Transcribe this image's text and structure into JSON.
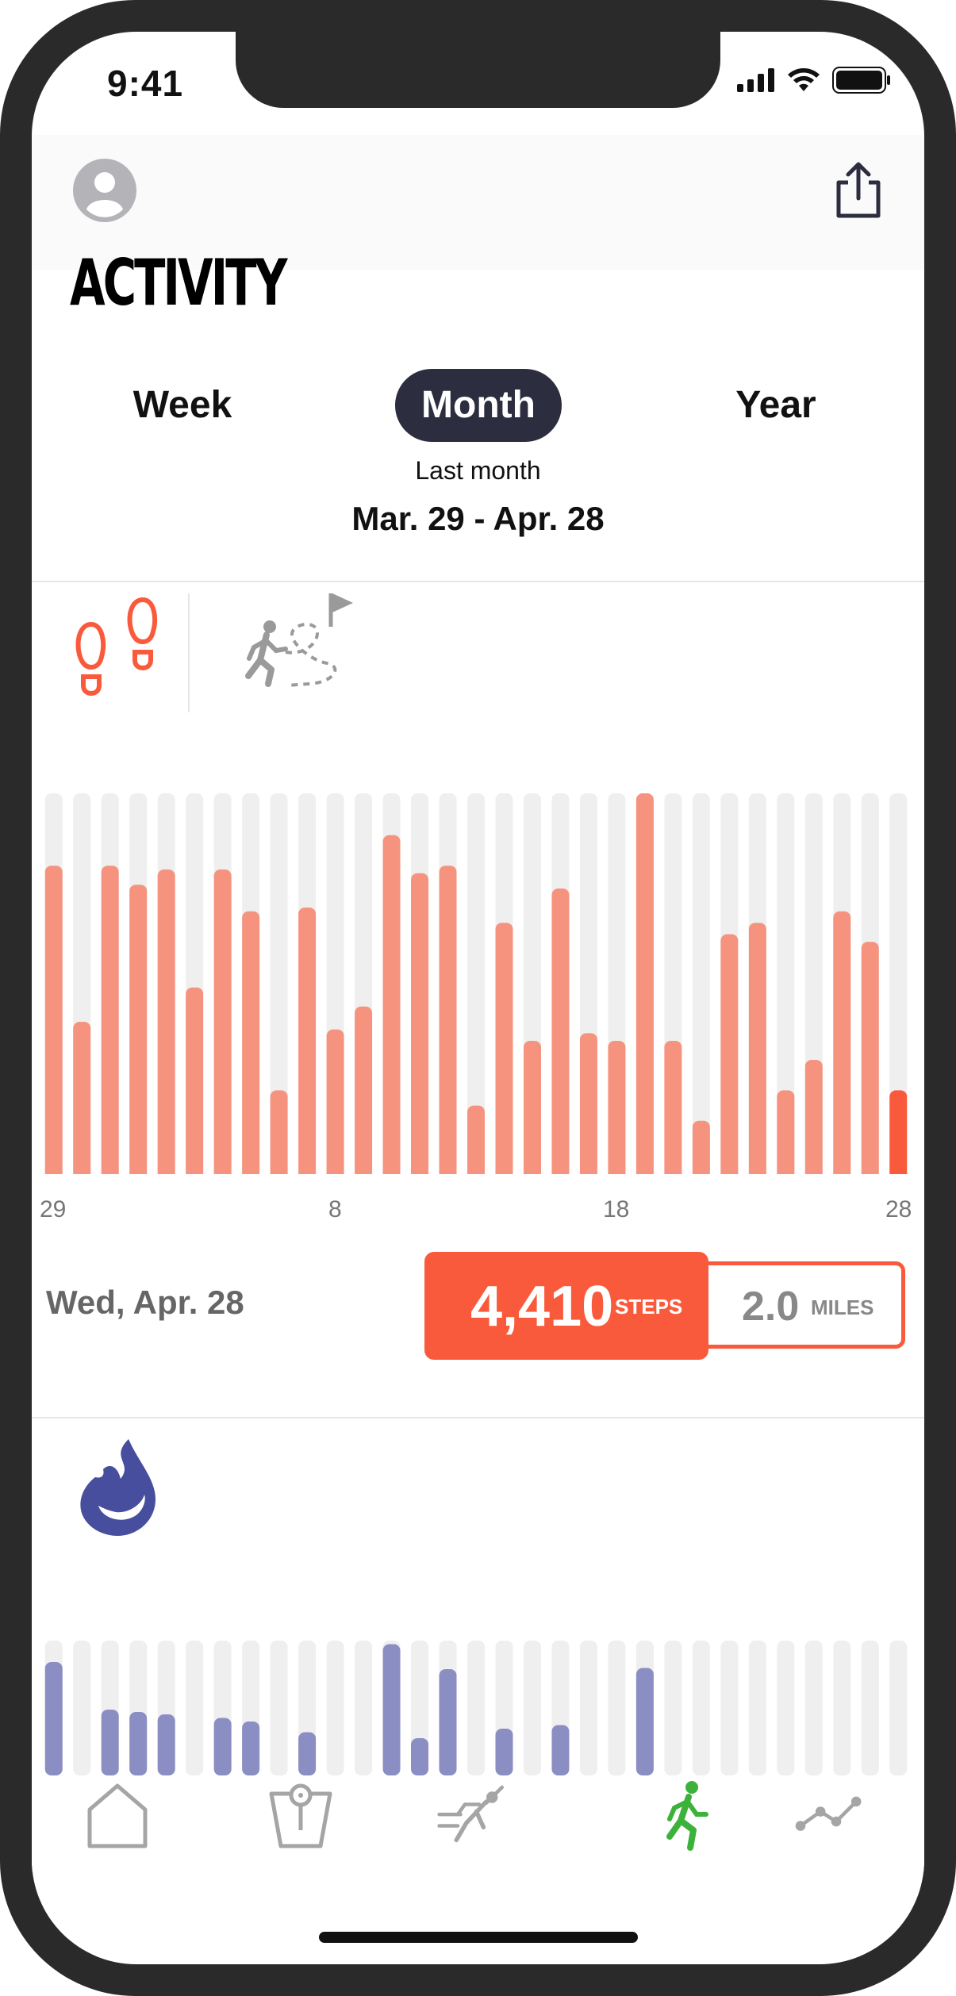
{
  "status_bar": {
    "time": "9:41"
  },
  "header": {
    "title": "ACTIVITY"
  },
  "period_tabs": [
    {
      "label": "Week",
      "selected": false
    },
    {
      "label": "Month",
      "selected": true
    },
    {
      "label": "Year",
      "selected": false
    }
  ],
  "range": {
    "caption": "Last month",
    "dates": "Mar. 29 - Apr. 28"
  },
  "colors": {
    "steps_accent": "#fa5a3c",
    "steps_bar": "#f5937f",
    "bar_track": "#efefef",
    "calories_bar": "#8b8ec2",
    "calories_icon": "#474e9d",
    "active_tab_icon": "#3db23a",
    "inactive_icon": "#a5a5a5"
  },
  "metric_icons": [
    "footprints-icon",
    "walking-route-icon"
  ],
  "chart_data": [
    {
      "type": "bar",
      "metric": "steps",
      "x_tick_labels": [
        "29",
        "8",
        "18",
        "28"
      ],
      "values": [
        0.81,
        0.4,
        0.81,
        0.76,
        0.8,
        0.49,
        0.8,
        0.69,
        0.22,
        0.7,
        0.38,
        0.44,
        0.89,
        0.79,
        0.81,
        0.18,
        0.66,
        0.35,
        0.75,
        0.37,
        0.35,
        1.0,
        0.35,
        0.14,
        0.63,
        0.66,
        0.22,
        0.3,
        0.69,
        0.61,
        0.22
      ],
      "highlighted_index": 30,
      "ylim": [
        0,
        1
      ]
    },
    {
      "type": "bar",
      "metric": "calories",
      "values": [
        0.82,
        0,
        0.42,
        0.4,
        0.38,
        0,
        0.35,
        0.32,
        0,
        0.23,
        0,
        0,
        0.97,
        0.18,
        0.76,
        0,
        0.26,
        0,
        0.29,
        0,
        0,
        0.77,
        0,
        0,
        0,
        0,
        0,
        0,
        0,
        0,
        0
      ],
      "ylim": [
        0,
        1
      ]
    }
  ],
  "selection": {
    "date": "Wed, Apr. 28",
    "steps_value": "4,410",
    "steps_unit": "STEPS",
    "miles_value": "2.0",
    "miles_unit": "MILES"
  },
  "tab_bar": [
    {
      "icon": "home-icon",
      "active": false
    },
    {
      "icon": "scale-icon",
      "active": false
    },
    {
      "icon": "workout-icon",
      "active": false
    },
    {
      "icon": "activity-icon",
      "active": true
    },
    {
      "icon": "trends-icon",
      "active": false
    }
  ]
}
